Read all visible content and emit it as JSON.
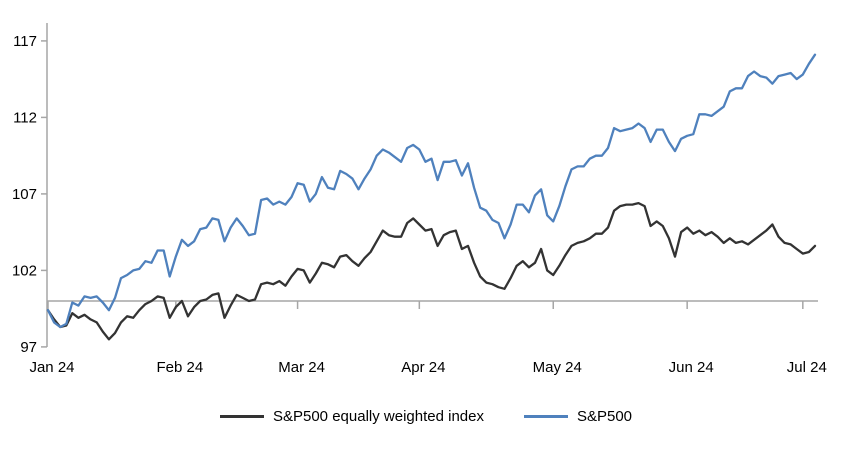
{
  "chart_data": {
    "type": "line",
    "title": "",
    "axis_color": "#a6a6a6",
    "background": "#ffffff",
    "baseline_value": 100,
    "grid": false,
    "legend_position": "bottom-center",
    "x_axis": {
      "tick_labels": [
        "Jan 24",
        "Feb 24",
        "Mar 24",
        "Apr 24",
        "May 24",
        "Jun 24",
        "Jul 24"
      ],
      "tick_indices": [
        0,
        21,
        41,
        61,
        83,
        105,
        124
      ]
    },
    "y_axis": {
      "ticks": [
        97,
        102,
        107,
        112,
        117
      ],
      "range_shown": [
        97,
        118
      ],
      "crosses_at": 100
    },
    "series": [
      {
        "name": "S&P500 equally weighted index",
        "color": "#333333",
        "values": [
          99.4,
          98.8,
          98.3,
          98.4,
          99.2,
          98.9,
          99.1,
          98.8,
          98.6,
          98.0,
          97.5,
          97.9,
          98.6,
          99.0,
          98.9,
          99.4,
          99.8,
          100.0,
          100.3,
          100.2,
          98.9,
          99.6,
          100.0,
          99.0,
          99.6,
          100.0,
          100.1,
          100.4,
          100.5,
          98.9,
          99.7,
          100.4,
          100.2,
          100.0,
          100.1,
          101.1,
          101.2,
          101.1,
          101.3,
          101.0,
          101.6,
          102.1,
          102.0,
          101.2,
          101.8,
          102.5,
          102.4,
          102.2,
          102.9,
          103.0,
          102.6,
          102.3,
          102.8,
          103.2,
          103.9,
          104.6,
          104.3,
          104.2,
          104.2,
          105.1,
          105.4,
          105.0,
          104.6,
          104.7,
          103.6,
          104.3,
          104.5,
          104.6,
          103.4,
          103.6,
          102.5,
          101.6,
          101.2,
          101.1,
          100.9,
          100.8,
          101.5,
          102.3,
          102.6,
          102.2,
          102.5,
          103.4,
          102.0,
          101.7,
          102.3,
          103.0,
          103.6,
          103.8,
          103.9,
          104.1,
          104.4,
          104.4,
          104.8,
          105.9,
          106.2,
          106.3,
          106.3,
          106.4,
          106.2,
          104.9,
          105.2,
          104.9,
          104.1,
          102.9,
          104.5,
          104.8,
          104.4,
          104.6,
          104.3,
          104.5,
          104.2,
          103.8,
          104.1,
          103.8,
          103.9,
          103.7,
          104.0,
          104.3,
          104.6,
          105.0,
          104.2,
          103.8,
          103.7,
          103.4,
          103.1,
          103.2,
          103.6
        ]
      },
      {
        "name": "S&P500",
        "color": "#4f81bd",
        "values": [
          99.4,
          98.6,
          98.3,
          98.5,
          99.9,
          99.7,
          100.3,
          100.2,
          100.3,
          99.9,
          99.4,
          100.2,
          101.5,
          101.7,
          102.0,
          102.1,
          102.6,
          102.5,
          103.3,
          103.3,
          101.6,
          102.9,
          104.0,
          103.6,
          103.9,
          104.7,
          104.8,
          105.4,
          105.3,
          103.9,
          104.8,
          105.4,
          104.9,
          104.3,
          104.4,
          106.6,
          106.7,
          106.3,
          106.5,
          106.3,
          106.8,
          107.7,
          107.6,
          106.5,
          107.0,
          108.1,
          107.4,
          107.3,
          108.5,
          108.3,
          108.0,
          107.3,
          108.0,
          108.6,
          109.5,
          109.9,
          109.7,
          109.4,
          109.1,
          110.0,
          110.2,
          109.9,
          109.1,
          109.3,
          107.9,
          109.1,
          109.1,
          109.2,
          108.2,
          109.0,
          107.4,
          106.1,
          105.9,
          105.3,
          105.1,
          104.1,
          105.0,
          106.3,
          106.3,
          105.8,
          106.9,
          107.3,
          105.6,
          105.2,
          106.2,
          107.5,
          108.6,
          108.8,
          108.8,
          109.3,
          109.5,
          109.5,
          110.0,
          111.3,
          111.1,
          111.2,
          111.3,
          111.6,
          111.3,
          110.4,
          111.2,
          111.2,
          110.4,
          109.8,
          110.6,
          110.8,
          110.9,
          112.2,
          112.2,
          112.1,
          112.4,
          112.7,
          113.7,
          113.9,
          113.9,
          114.7,
          115.0,
          114.7,
          114.6,
          114.2,
          114.7,
          114.8,
          114.9,
          114.5,
          114.8,
          115.5,
          116.1
        ]
      }
    ]
  },
  "legend": {
    "items": [
      {
        "label": "S&P500 equally weighted index"
      },
      {
        "label": "S&P500"
      }
    ]
  }
}
